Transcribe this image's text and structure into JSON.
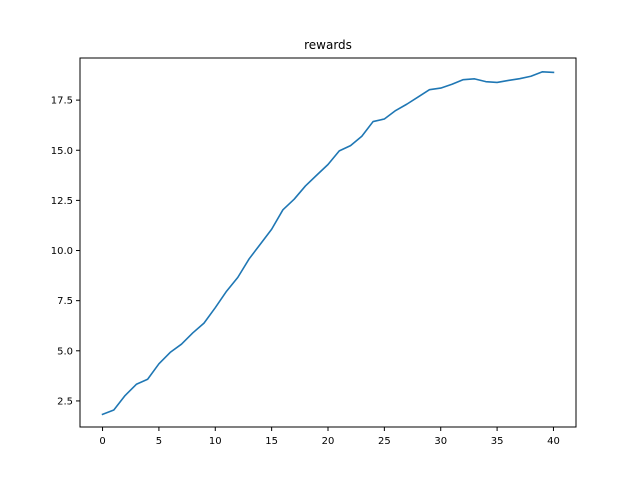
{
  "chart_data": {
    "type": "line",
    "title": "rewards",
    "xlabel": "",
    "ylabel": "",
    "xlim": [
      -2,
      42
    ],
    "ylim": [
      1.2,
      19.6
    ],
    "x_ticks": [
      0,
      5,
      10,
      15,
      20,
      25,
      30,
      35,
      40
    ],
    "x_tick_labels": [
      "0",
      "5",
      "10",
      "15",
      "20",
      "25",
      "30",
      "35",
      "40"
    ],
    "y_ticks": [
      2.5,
      5.0,
      7.5,
      10.0,
      12.5,
      15.0,
      17.5
    ],
    "y_tick_labels": [
      "2.5",
      "5.0",
      "7.5",
      "10.0",
      "12.5",
      "15.0",
      "17.5"
    ],
    "grid": false,
    "legend": "none",
    "line_color": "#1f77b4",
    "series": [
      {
        "x": [
          0,
          1,
          2,
          3,
          4,
          5,
          6,
          7,
          8,
          9,
          10,
          11,
          12,
          13,
          14,
          15,
          16,
          17,
          18,
          19,
          20,
          21,
          22,
          23,
          24,
          25,
          26,
          27,
          28,
          29,
          30,
          31,
          32,
          33,
          34,
          35,
          36,
          37,
          38,
          39,
          40
        ],
        "values": [
          1.83,
          2.05,
          2.77,
          3.33,
          3.58,
          4.35,
          4.92,
          5.33,
          5.89,
          6.38,
          7.15,
          7.97,
          8.66,
          9.58,
          10.32,
          11.06,
          12.03,
          12.56,
          13.22,
          13.76,
          14.29,
          14.97,
          15.23,
          15.7,
          16.43,
          16.56,
          16.98,
          17.3,
          17.66,
          18.02,
          18.1,
          18.29,
          18.52,
          18.56,
          18.42,
          18.38,
          18.48,
          18.57,
          18.69,
          18.91,
          18.88
        ]
      }
    ]
  }
}
